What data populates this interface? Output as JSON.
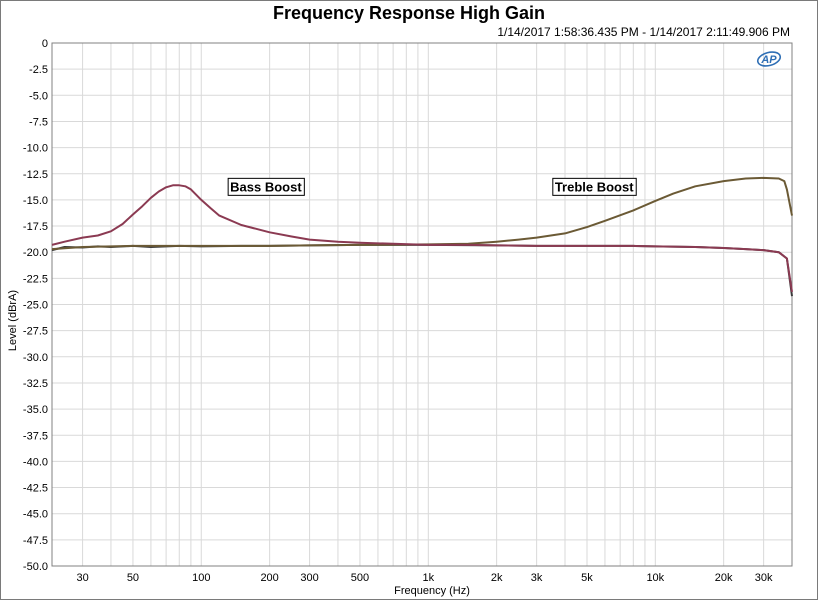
{
  "window": {
    "title": "Frequency Response High Gain",
    "subtitle": "1/14/2017 1:58:36.435 PM - 1/14/2017 2:11:49.906 PM",
    "logo_text": "AP"
  },
  "colors": {
    "grid": "#d9d9d9",
    "axis": "#808080",
    "bass": "#8b3a52",
    "treble": "#6b5a35",
    "flat": "#3c3c3c"
  },
  "chart_data": {
    "type": "line",
    "title": "Frequency Response High Gain",
    "xlabel": "Frequency (Hz)",
    "ylabel": "Level (dBrA)",
    "xscale": "log",
    "xlim": [
      22,
      40000
    ],
    "ylim": [
      -50,
      0
    ],
    "grid": true,
    "yticks": [
      0,
      -2.5,
      -5,
      -7.5,
      -10,
      -12.5,
      -15,
      -17.5,
      -20,
      -22.5,
      -25,
      -27.5,
      -30,
      -32.5,
      -35,
      -37.5,
      -40,
      -42.5,
      -45,
      -47.5,
      -50
    ],
    "ytick_labels": [
      "0",
      "-2.5",
      "-5.0",
      "-7.5",
      "-10.0",
      "-12.5",
      "-15.0",
      "-17.5",
      "-20.0",
      "-22.5",
      "-25.0",
      "-27.5",
      "-30.0",
      "-32.5",
      "-35.0",
      "-37.5",
      "-40.0",
      "-42.5",
      "-45.0",
      "-47.5",
      "-50.0"
    ],
    "xticks": [
      30,
      50,
      100,
      200,
      300,
      500,
      1000,
      2000,
      3000,
      5000,
      10000,
      20000,
      30000
    ],
    "xtick_labels": [
      "30",
      "50",
      "100",
      "200",
      "300",
      "500",
      "1k",
      "2k",
      "3k",
      "5k",
      "10k",
      "20k",
      "30k"
    ],
    "annotations": [
      {
        "text": "Bass Boost",
        "x": 130,
        "y": -13.8
      },
      {
        "text": "Treble Boost",
        "x": 3500,
        "y": -13.8
      }
    ],
    "series": [
      {
        "key": "bass",
        "x": [
          22,
          25,
          30,
          35,
          40,
          45,
          50,
          55,
          60,
          65,
          70,
          75,
          80,
          85,
          90,
          100,
          110,
          120,
          150,
          200,
          250,
          300,
          400,
          500,
          700,
          1000,
          1500,
          2000,
          3000,
          5000,
          8000,
          10000,
          15000,
          20000,
          25000,
          30000,
          35000,
          38000,
          40000
        ],
        "y": [
          -19.3,
          -19.0,
          -18.6,
          -18.4,
          -18.0,
          -17.3,
          -16.4,
          -15.6,
          -14.8,
          -14.2,
          -13.8,
          -13.6,
          -13.6,
          -13.7,
          -14.0,
          -15.0,
          -15.8,
          -16.5,
          -17.4,
          -18.1,
          -18.5,
          -18.8,
          -19.0,
          -19.1,
          -19.2,
          -19.3,
          -19.3,
          -19.35,
          -19.4,
          -19.4,
          -19.4,
          -19.45,
          -19.5,
          -19.6,
          -19.7,
          -19.8,
          -20.0,
          -20.6,
          -23.8
        ]
      },
      {
        "key": "treble",
        "x": [
          22,
          30,
          50,
          100,
          200,
          300,
          500,
          1000,
          1500,
          2000,
          2500,
          3000,
          4000,
          5000,
          6000,
          8000,
          10000,
          12000,
          15000,
          20000,
          25000,
          30000,
          35000,
          37000,
          38000,
          40000
        ],
        "y": [
          -19.7,
          -19.5,
          -19.4,
          -19.4,
          -19.4,
          -19.35,
          -19.3,
          -19.25,
          -19.2,
          -19.0,
          -18.8,
          -18.6,
          -18.2,
          -17.6,
          -17.0,
          -16.0,
          -15.1,
          -14.4,
          -13.7,
          -13.2,
          -12.95,
          -12.9,
          -12.95,
          -13.2,
          -14.0,
          -16.5
        ]
      },
      {
        "key": "flat",
        "x": [
          22,
          25,
          30,
          35,
          40,
          50,
          60,
          80,
          100,
          150,
          200,
          300,
          500,
          700,
          1000,
          2000,
          3000,
          5000,
          8000,
          10000,
          15000,
          20000,
          25000,
          30000,
          35000,
          38000,
          40000
        ],
        "y": [
          -19.8,
          -19.5,
          -19.55,
          -19.45,
          -19.5,
          -19.4,
          -19.5,
          -19.4,
          -19.45,
          -19.4,
          -19.4,
          -19.35,
          -19.3,
          -19.3,
          -19.3,
          -19.35,
          -19.4,
          -19.4,
          -19.4,
          -19.45,
          -19.5,
          -19.6,
          -19.7,
          -19.8,
          -20.0,
          -20.6,
          -24.2
        ]
      }
    ]
  }
}
